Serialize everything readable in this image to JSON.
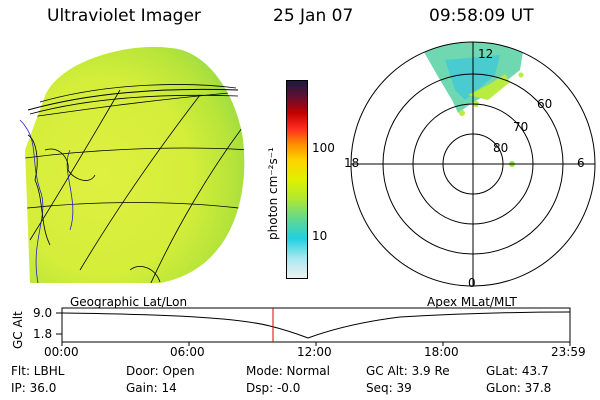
{
  "header": {
    "instrument": "Ultraviolet Imager",
    "date": "25 Jan 07",
    "time": "09:58:09 UT"
  },
  "colorbar": {
    "label": "photon cm⁻²s⁻¹",
    "ticks": [
      "100",
      "10"
    ],
    "colors": [
      "#202040",
      "#c00000",
      "#ff2020",
      "#ff8c00",
      "#ffd000",
      "#d8f000",
      "#a8e020",
      "#40d0a0",
      "#20d0e0",
      "#a0e8f0",
      "#e8f0f0"
    ]
  },
  "polar": {
    "lat_labels": [
      "60",
      "70",
      "80"
    ],
    "mlt_labels": {
      "top": "12",
      "left": "18",
      "right": "6",
      "bottom": "0"
    }
  },
  "timeline": {
    "axis_label": "GC Alt",
    "y_ticks": [
      "9.0",
      "1.8"
    ],
    "left_title": "Geographic Lat/Lon",
    "right_title": "Apex MLat/MLT",
    "x_ticks": [
      "00:00",
      "06:00",
      "12:00",
      "18:00",
      "23:59"
    ],
    "marker_color": "#e00000"
  },
  "info": {
    "row1": {
      "flt": "Flt: LBHL",
      "door": "Door: Open",
      "mode": "Mode: Normal",
      "gcalt": "GC Alt: 3.9 Re",
      "glat": "GLat:  43.7"
    },
    "row2": {
      "ip": "IP: 36.0",
      "gain": "Gain: 14",
      "dsp": "Dsp:  -0.0",
      "seq": "Seq: 39",
      "glon": "GLon:  37.8"
    }
  }
}
